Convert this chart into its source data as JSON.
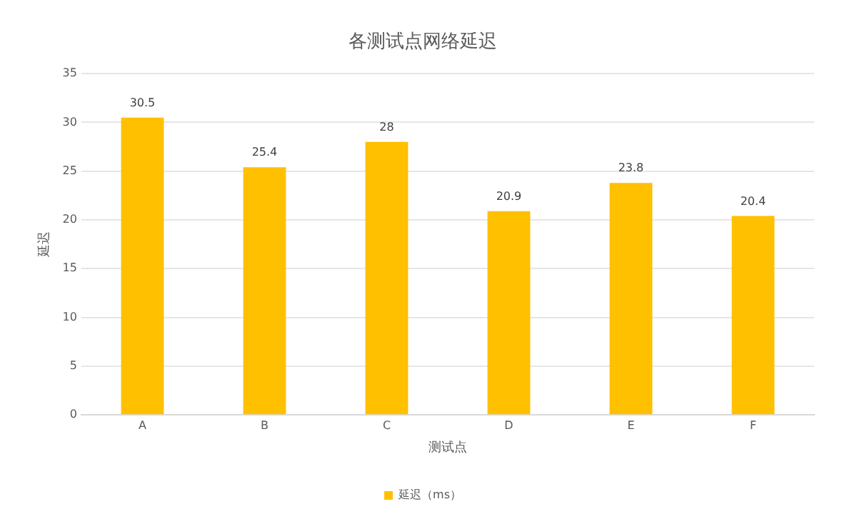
{
  "chart_data": {
    "type": "bar",
    "title": "各测试点网络延迟",
    "xlabel": "测试点",
    "ylabel": "延迟",
    "categories": [
      "A",
      "B",
      "C",
      "D",
      "E",
      "F"
    ],
    "series": [
      {
        "name": "延迟（ms）",
        "color": "#ffc000",
        "values": [
          30.5,
          25.4,
          28,
          20.9,
          23.8,
          20.4
        ]
      }
    ],
    "ylim": [
      0,
      35
    ],
    "yticks": [
      0,
      5,
      10,
      15,
      20,
      25,
      30,
      35
    ],
    "grid": "y",
    "legend": "bottom",
    "data_labels": true
  }
}
